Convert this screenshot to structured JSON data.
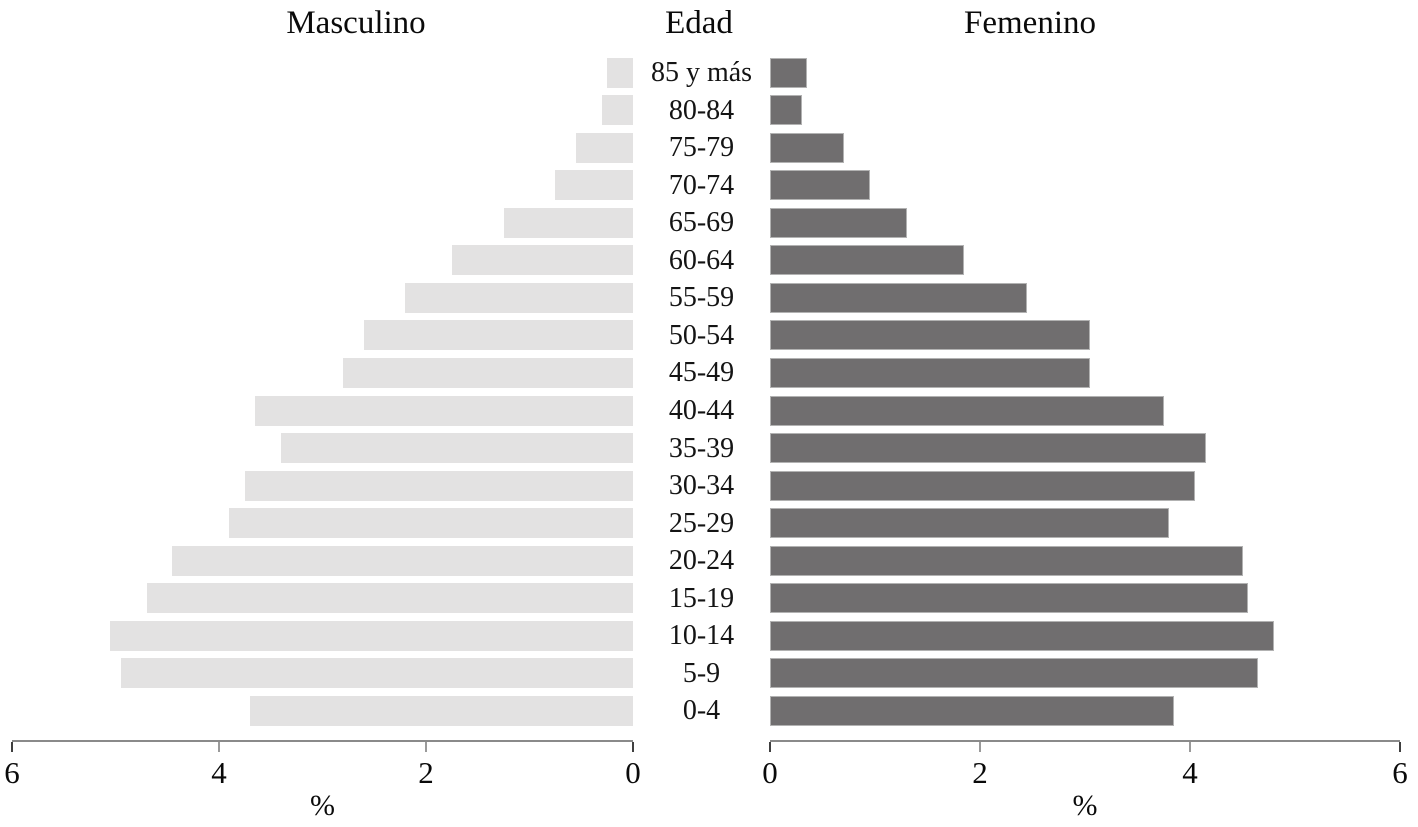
{
  "titles": {
    "left": "Masculino",
    "center": "Edad",
    "right": "Femenino"
  },
  "axis": {
    "xlabel": "%",
    "max": 6,
    "left_ticks": [
      "6",
      "4",
      "2",
      "0"
    ],
    "right_ticks": [
      "0",
      "2",
      "4",
      "6"
    ]
  },
  "colors": {
    "male_bar": "#e3e2e2",
    "female_bar": "#706e6f",
    "female_bar_border": "#b2b2b2",
    "axis_line": "#8a8a8a",
    "tick_inner": "#9a9a9a",
    "tick_end": "#3f3f3f",
    "text": "#0a0a0a"
  },
  "chart_data": {
    "type": "bar",
    "subtype": "population-pyramid",
    "title": "",
    "xlabel": "%",
    "ylabel": "Edad",
    "xlim": [
      0,
      6
    ],
    "x_ticks": [
      0,
      2,
      4,
      6
    ],
    "grid": false,
    "categories_top_to_bottom": true,
    "categories": [
      "85 y más",
      "80-84",
      "75-79",
      "70-74",
      "65-69",
      "60-64",
      "55-59",
      "50-54",
      "45-49",
      "40-44",
      "35-39",
      "30-34",
      "25-29",
      "20-24",
      "15-19",
      "10-14",
      "5-9",
      "0-4"
    ],
    "series": [
      {
        "name": "Masculino",
        "side": "left",
        "unit": "%",
        "values": [
          0.25,
          0.3,
          0.55,
          0.75,
          1.25,
          1.75,
          2.2,
          2.6,
          2.8,
          3.65,
          3.4,
          3.75,
          3.9,
          4.45,
          4.7,
          5.05,
          4.95,
          3.7
        ]
      },
      {
        "name": "Femenino",
        "side": "right",
        "unit": "%",
        "values": [
          0.35,
          0.3,
          0.7,
          0.95,
          1.3,
          1.85,
          2.45,
          3.05,
          3.05,
          3.75,
          4.15,
          4.05,
          3.8,
          4.5,
          4.55,
          4.8,
          4.65,
          3.85
        ]
      }
    ]
  }
}
